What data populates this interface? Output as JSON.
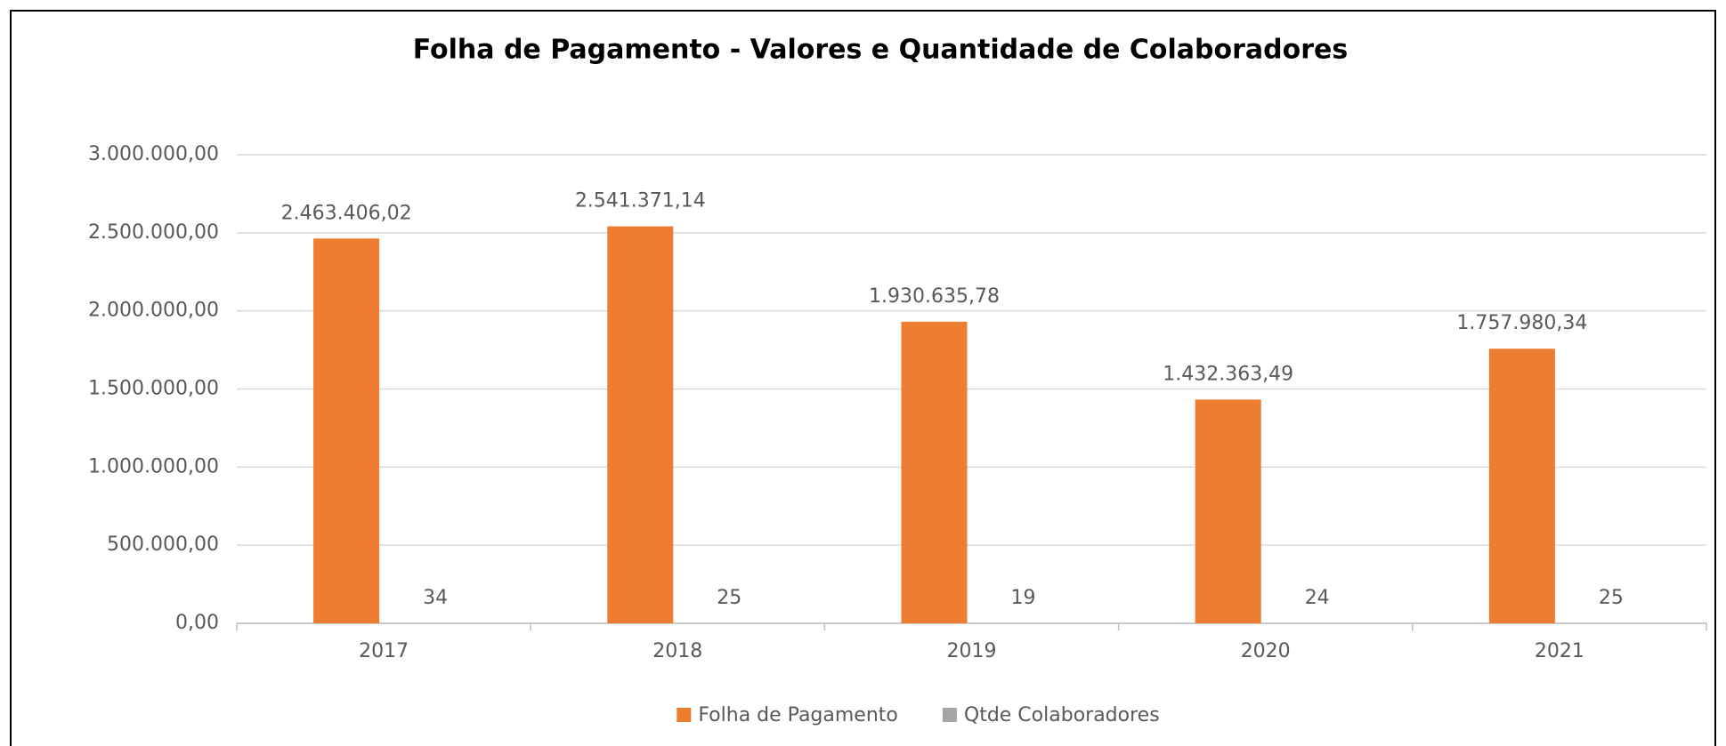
{
  "chart_data": {
    "type": "bar",
    "title": "Folha de Pagamento - Valores e Quantidade de Colaboradores",
    "categories": [
      "2017",
      "2018",
      "2019",
      "2020",
      "2021"
    ],
    "series": [
      {
        "name": "Folha de Pagamento",
        "color": "#ed7d31",
        "values": [
          2463406.02,
          2541371.14,
          1930635.78,
          1432363.49,
          1757980.34
        ],
        "value_labels": [
          "2.463.406,02",
          "2.541.371,14",
          "1.930.635,78",
          "1.432.363,49",
          "1.757.980,34"
        ]
      },
      {
        "name": "Qtde Colaboradores",
        "color": "#a5a5a5",
        "values": [
          34,
          25,
          19,
          24,
          25
        ]
      }
    ],
    "ylim": [
      0,
      3000000
    ],
    "yticks": [
      {
        "value": 0,
        "label": "0,00"
      },
      {
        "value": 500000,
        "label": "500.000,00"
      },
      {
        "value": 1000000,
        "label": "1.000.000,00"
      },
      {
        "value": 1500000,
        "label": "1.500.000,00"
      },
      {
        "value": 2000000,
        "label": "2.000.000,00"
      },
      {
        "value": 2500000,
        "label": "2.500.000,00"
      },
      {
        "value": 3000000,
        "label": "3.000.000,00"
      }
    ],
    "grid": true,
    "legend": "bottom"
  }
}
